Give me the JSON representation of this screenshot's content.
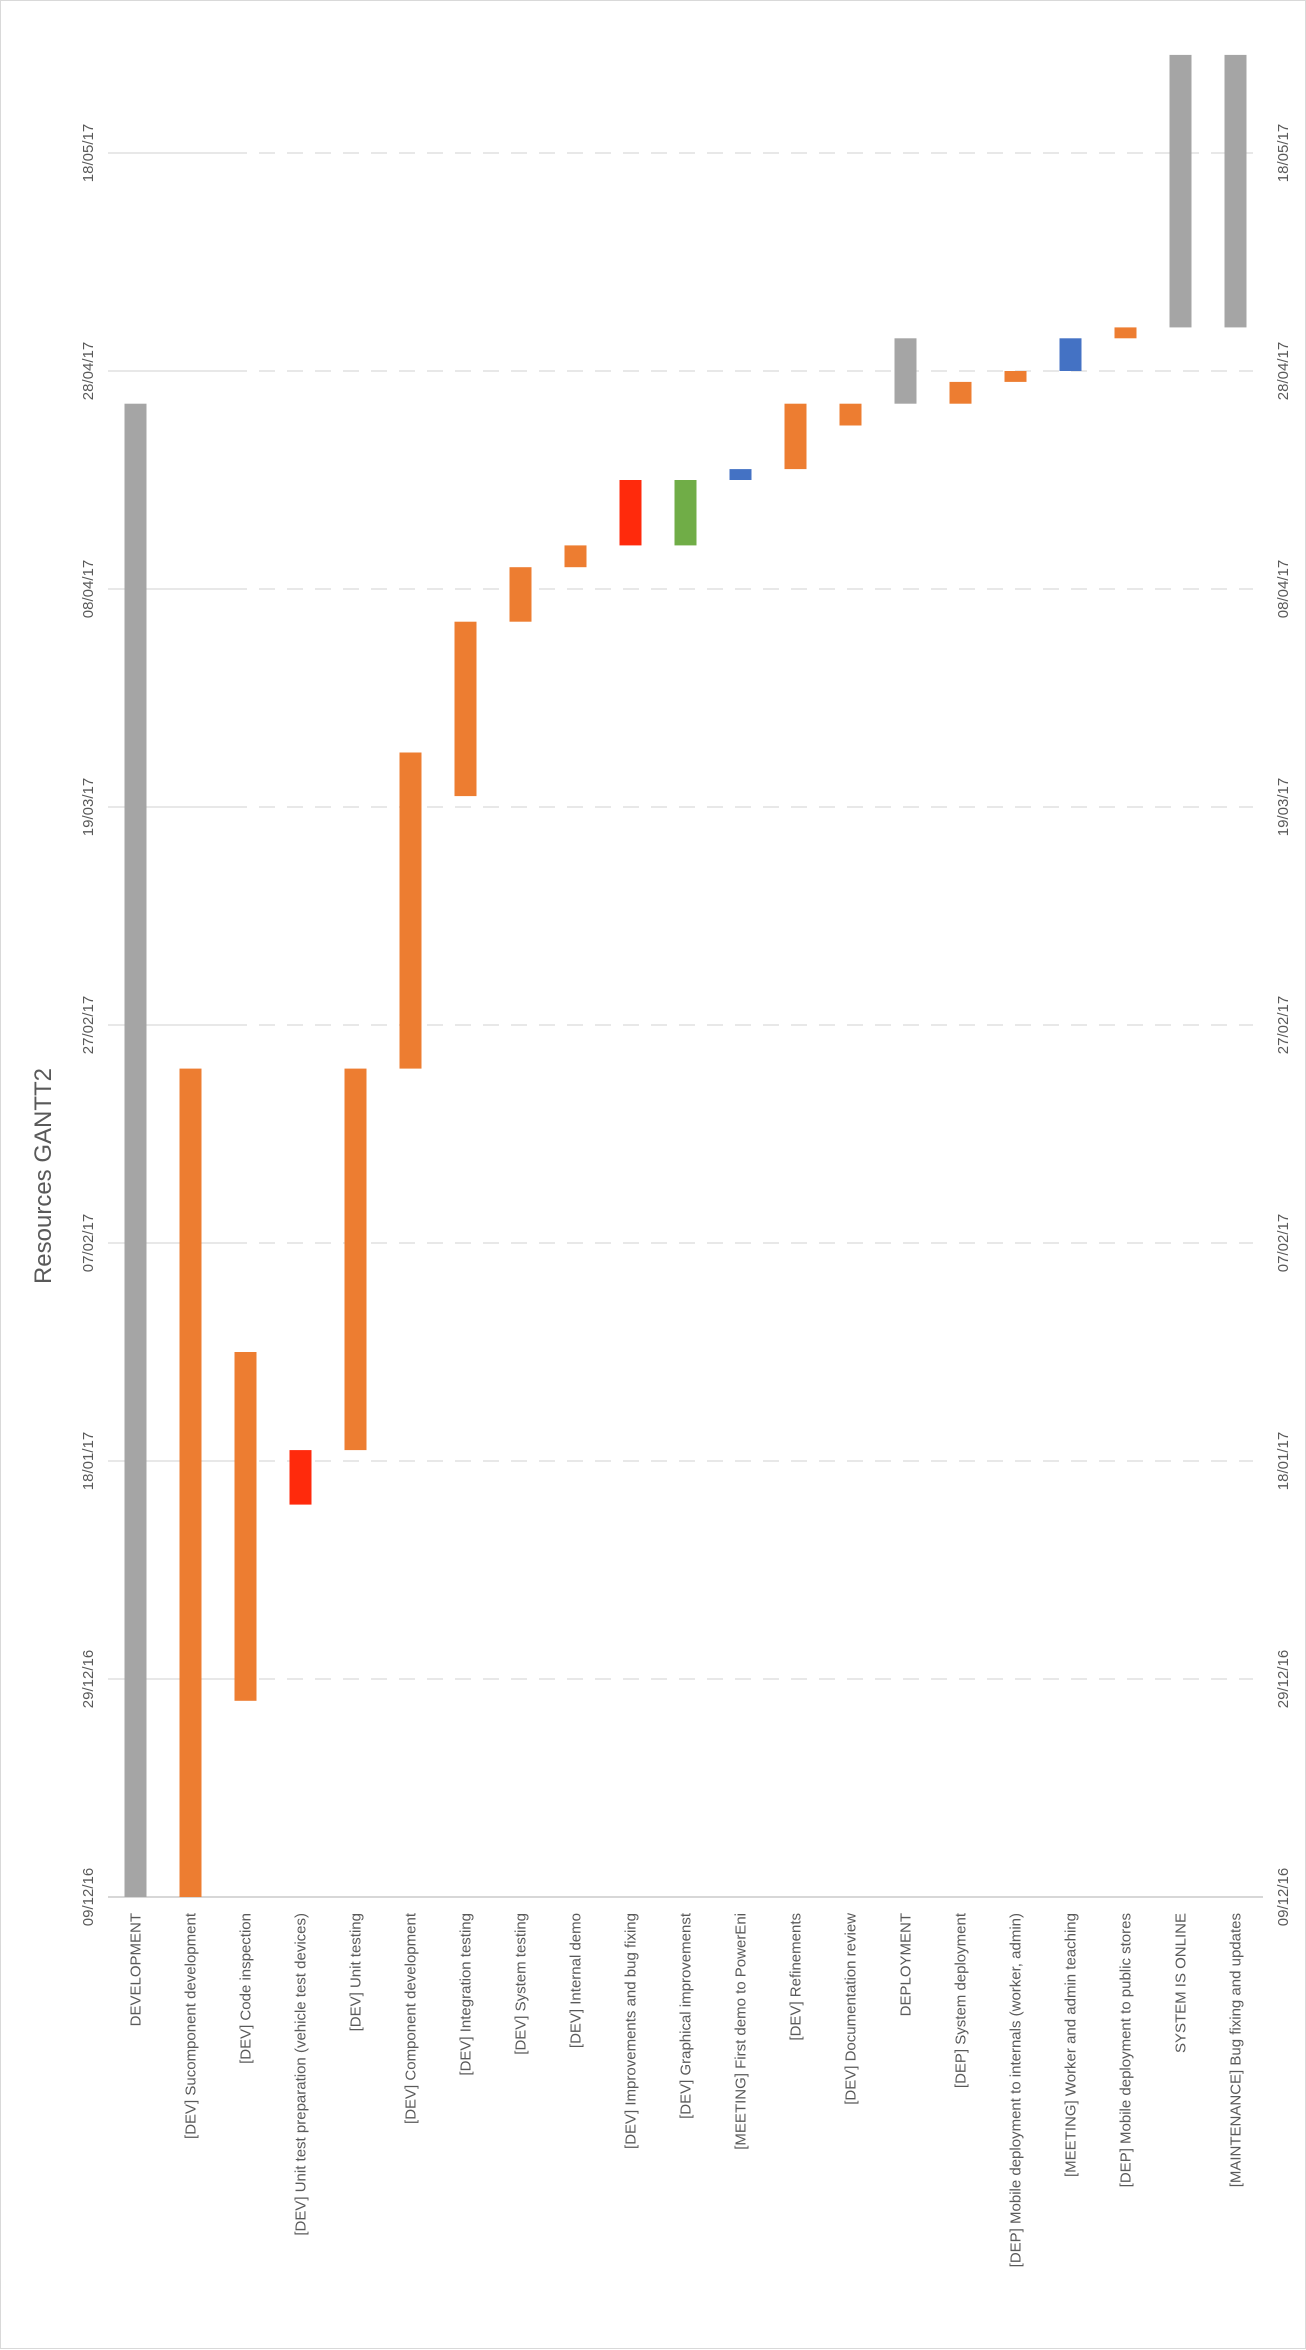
{
  "chart_data": {
    "type": "gantt",
    "title": "Resources GANTT2",
    "orientation": "rotated",
    "date_ticks": [
      "09/12/16",
      "29/12/16",
      "18/01/17",
      "07/02/17",
      "27/02/17",
      "19/03/17",
      "08/04/17",
      "28/04/17",
      "18/05/17"
    ],
    "range": [
      "2016-12-09",
      "2017-05-26"
    ],
    "grid": "dashed-partial",
    "colors": {
      "orange": "#ed7d31",
      "gray": "#a5a5a5",
      "red": "#ff2a0c",
      "green": "#70ad47",
      "blue": "#4472c4"
    },
    "tasks": [
      {
        "label": "DEVELOPMENT",
        "start": "2016-12-09",
        "end": "2017-04-25",
        "color": "gray"
      },
      {
        "label": "[DEV] Sucomponent development",
        "start": "2016-12-09",
        "end": "2017-02-23",
        "color": "orange"
      },
      {
        "label": "[DEV] Code inspection",
        "start": "2016-12-27",
        "end": "2017-01-28",
        "color": "orange"
      },
      {
        "label": "[DEV] Unit test preparation (vehicle test devices)",
        "start": "2017-01-14",
        "end": "2017-01-19",
        "color": "red"
      },
      {
        "label": "[DEV] Unit testing",
        "start": "2017-01-19",
        "end": "2017-02-23",
        "color": "orange"
      },
      {
        "label": "[DEV] Component development",
        "start": "2017-02-23",
        "end": "2017-03-24",
        "color": "orange"
      },
      {
        "label": "[DEV] Integration testing",
        "start": "2017-03-20",
        "end": "2017-04-05",
        "color": "orange"
      },
      {
        "label": "[DEV] System testing",
        "start": "2017-04-05",
        "end": "2017-04-10",
        "color": "orange"
      },
      {
        "label": "[DEV] Internal demo",
        "start": "2017-04-10",
        "end": "2017-04-12",
        "color": "orange"
      },
      {
        "label": "[DEV] Improvements and bug fixing",
        "start": "2017-04-12",
        "end": "2017-04-18",
        "color": "red"
      },
      {
        "label": "[DEV] Graphical improvemenst",
        "start": "2017-04-12",
        "end": "2017-04-18",
        "color": "green"
      },
      {
        "label": "[MEETING] First demo to PowerEni",
        "start": "2017-04-18",
        "end": "2017-04-19",
        "color": "blue"
      },
      {
        "label": "[DEV] Refinements",
        "start": "2017-04-19",
        "end": "2017-04-25",
        "color": "orange"
      },
      {
        "label": "[DEV] Documentation review",
        "start": "2017-04-23",
        "end": "2017-04-25",
        "color": "orange"
      },
      {
        "label": "DEPLOYMENT",
        "start": "2017-04-25",
        "end": "2017-05-01",
        "color": "gray"
      },
      {
        "label": "[DEP] System deployment",
        "start": "2017-04-25",
        "end": "2017-04-27",
        "color": "orange"
      },
      {
        "label": "[DEP] Mobile deployment to internals (worker, admin)",
        "start": "2017-04-27",
        "end": "2017-04-28",
        "color": "orange"
      },
      {
        "label": "[MEETING] Worker and admin teaching",
        "start": "2017-04-28",
        "end": "2017-05-01",
        "color": "blue"
      },
      {
        "label": "[DEP] Mobile deployment to public stores",
        "start": "2017-05-01",
        "end": "2017-05-02",
        "color": "orange"
      },
      {
        "label": "SYSTEM IS ONLINE",
        "start": "2017-05-02",
        "end": "2017-05-27",
        "color": "gray"
      },
      {
        "label": "[MAINTENANCE] Bug fixing and updates",
        "start": "2017-05-02",
        "end": "2017-05-27",
        "color": "gray"
      }
    ]
  }
}
